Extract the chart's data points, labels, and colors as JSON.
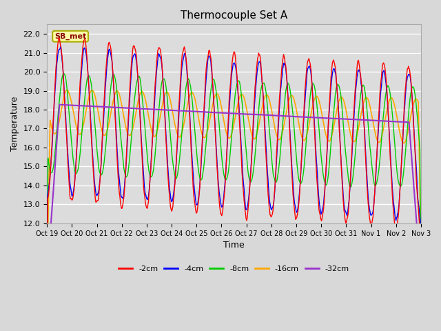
{
  "title": "Thermocouple Set A",
  "xlabel": "Time",
  "ylabel": "Temperature",
  "ylim": [
    12.0,
    22.5
  ],
  "yticks": [
    12.0,
    13.0,
    14.0,
    15.0,
    16.0,
    17.0,
    18.0,
    19.0,
    20.0,
    21.0,
    22.0
  ],
  "xlabels": [
    "Oct 19",
    "Oct 20",
    "Oct 21",
    "Oct 22",
    "Oct 23",
    "Oct 24",
    "Oct 25",
    "Oct 26",
    "Oct 27",
    "Oct 28",
    "Oct 29",
    "Oct 30",
    "Oct 31",
    "Nov 1",
    "Nov 2",
    "Nov 3"
  ],
  "colors": {
    "-2cm": "#ff0000",
    "-4cm": "#0000ff",
    "-8cm": "#00cc00",
    "-16cm": "#ffa500",
    "-32cm": "#9933cc"
  },
  "legend_labels": [
    "-2cm",
    "-4cm",
    "-8cm",
    "-16cm",
    "-32cm"
  ],
  "annotation_text": "SB_met",
  "background_color": "#dcdcdc",
  "grid_color": "#ffffff",
  "fig_facecolor": "#d8d8d8",
  "n_days": 15,
  "samples_per_day": 48
}
